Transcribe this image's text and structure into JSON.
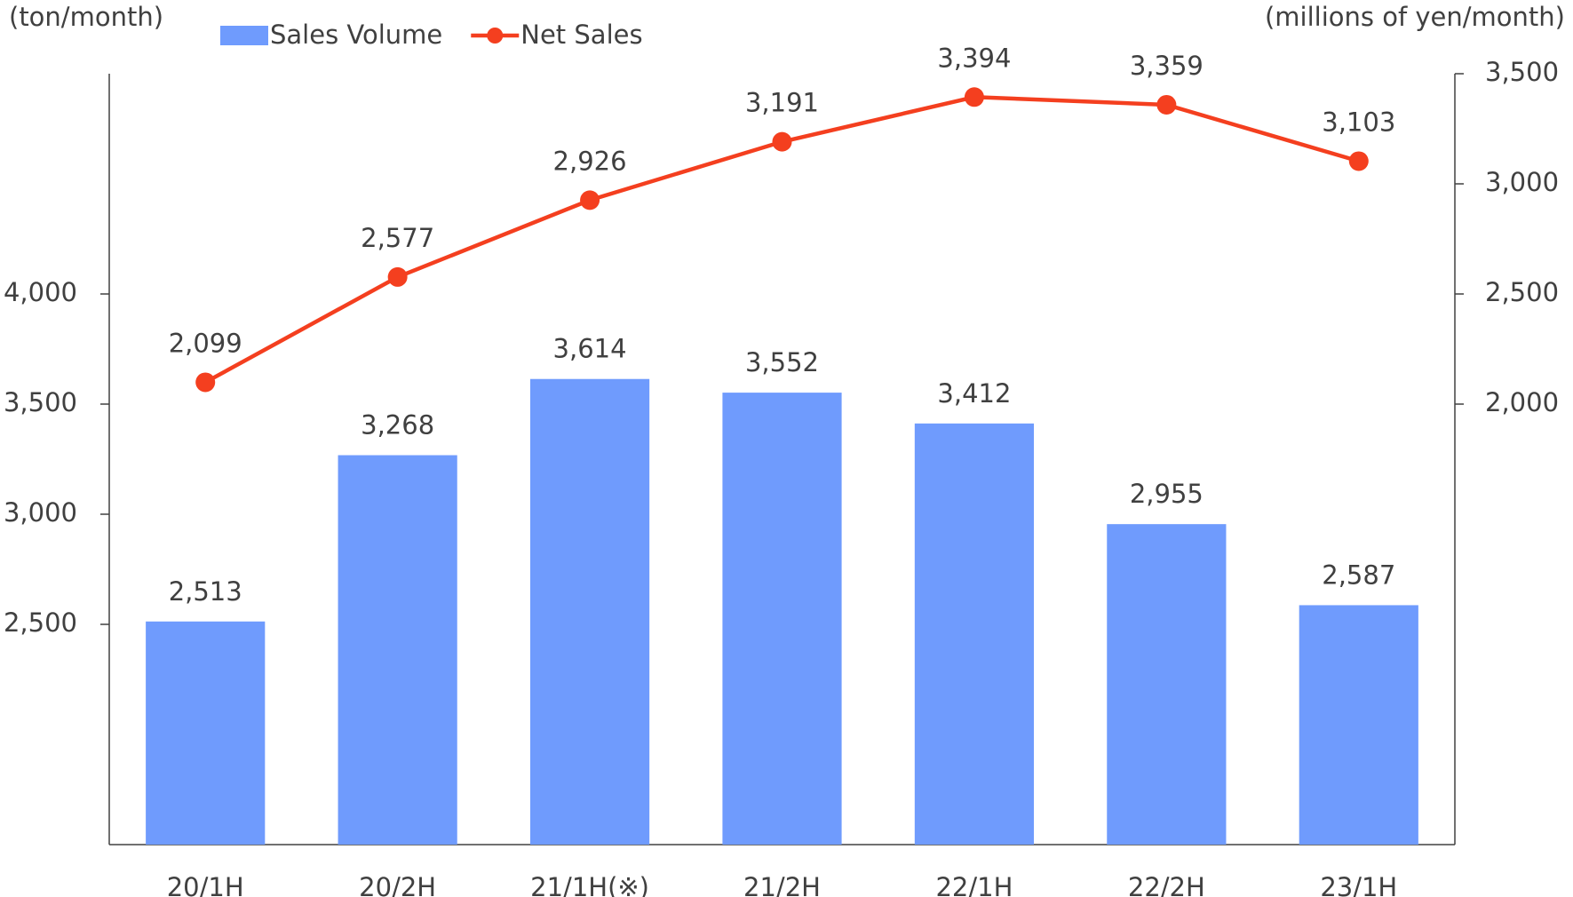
{
  "chart_data": {
    "type": "bar_line",
    "y_axis_label": "(ton/month)",
    "y2_axis_label": "(millions of yen/month)",
    "categories": [
      "20/1H",
      "20/2H",
      "21/1H(※)",
      "21/2H",
      "22/1H",
      "22/2H",
      "23/1H"
    ],
    "series": [
      {
        "name": "Sales Volume",
        "type": "bar",
        "color": "#6f9bfd",
        "values": [
          2513,
          3268,
          3614,
          3552,
          3412,
          2955,
          2587
        ],
        "value_labels": [
          "2,513",
          "3,268",
          "3,614",
          "3,552",
          "3,412",
          "2,955",
          "2,587"
        ]
      },
      {
        "name": "Net Sales",
        "type": "line",
        "axis": "y2",
        "color": "#f43f1f",
        "values": [
          2099,
          2577,
          2926,
          3191,
          3394,
          3359,
          3103
        ],
        "value_labels": [
          "2,099",
          "2,577",
          "2,926",
          "3,191",
          "3,394",
          "3,359",
          "3,103"
        ]
      }
    ],
    "ylim": [
      1500,
      5000
    ],
    "yticks": [
      {
        "value": 2500,
        "label": "2,500"
      },
      {
        "value": 3000,
        "label": "3,000"
      },
      {
        "value": 3500,
        "label": "3,500"
      },
      {
        "value": 4000,
        "label": "4,000"
      }
    ],
    "y2lim": [
      0,
      3500
    ],
    "y2ticks": [
      {
        "value": 2000,
        "label": "2,000"
      },
      {
        "value": 2500,
        "label": "2,500"
      },
      {
        "value": 3000,
        "label": "3,000"
      },
      {
        "value": 3500,
        "label": "3,500"
      }
    ],
    "grid": false,
    "legend": "top"
  }
}
